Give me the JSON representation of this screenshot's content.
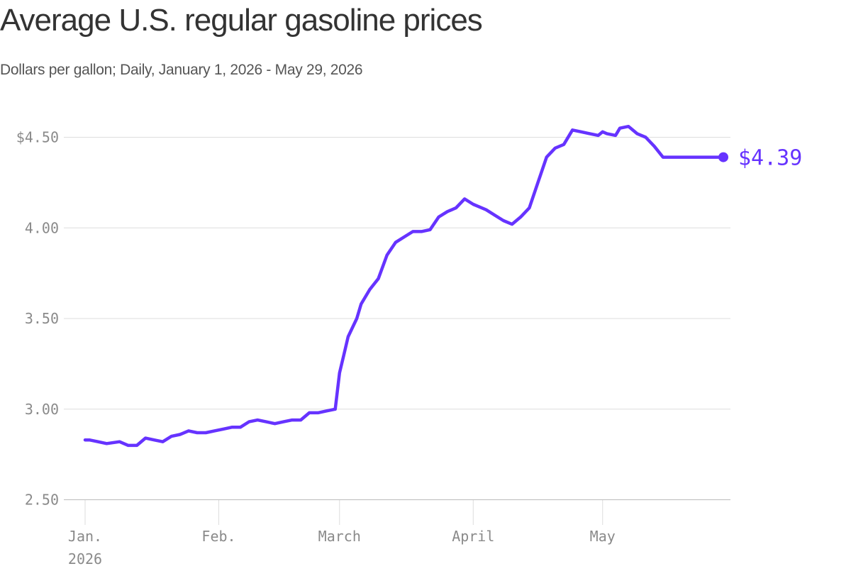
{
  "title": "Average U.S. regular gasoline prices",
  "subtitle": "Dollars per gallon; Daily, January 1, 2026 - May 29, 2026",
  "colors": {
    "line": "#6633ff",
    "grid": "#dddddd",
    "tick_text": "#8a8a8a",
    "title": "#333333"
  },
  "chart_data": {
    "type": "line",
    "title": "Average U.S. regular gasoline prices",
    "subtitle": "Dollars per gallon; Daily, January 1, 2026 - May 29, 2026",
    "xlabel": "",
    "ylabel": "",
    "ylim": [
      2.5,
      4.55
    ],
    "grid": true,
    "y_ticks": [
      {
        "value": 4.5,
        "label": "$4.50"
      },
      {
        "value": 4.0,
        "label": "4.00"
      },
      {
        "value": 3.5,
        "label": "3.50"
      },
      {
        "value": 3.0,
        "label": "3.00"
      },
      {
        "value": 2.5,
        "label": "2.50"
      }
    ],
    "x_ticks": [
      {
        "date": "2026-01-01",
        "label": "Jan.",
        "sublabel": "2026"
      },
      {
        "date": "2026-02-01",
        "label": "Feb.",
        "sublabel": ""
      },
      {
        "date": "2026-03-01",
        "label": "March",
        "sublabel": ""
      },
      {
        "date": "2026-04-01",
        "label": "April",
        "sublabel": ""
      },
      {
        "date": "2026-05-01",
        "label": "May",
        "sublabel": ""
      }
    ],
    "end_label": "$4.39",
    "series": [
      {
        "x": [
          "2026-01-01",
          "2026-01-02",
          "2026-01-04",
          "2026-01-06",
          "2026-01-09",
          "2026-01-11",
          "2026-01-13",
          "2026-01-15",
          "2026-01-17",
          "2026-01-19",
          "2026-01-21",
          "2026-01-23",
          "2026-01-25",
          "2026-01-27",
          "2026-01-29",
          "2026-01-31",
          "2026-02-02",
          "2026-02-04",
          "2026-02-06",
          "2026-02-08",
          "2026-02-10",
          "2026-02-12",
          "2026-02-14",
          "2026-02-16",
          "2026-02-18",
          "2026-02-20",
          "2026-02-22",
          "2026-02-24",
          "2026-02-26",
          "2026-02-28",
          "2026-03-01",
          "2026-03-02",
          "2026-03-03",
          "2026-03-05",
          "2026-03-06",
          "2026-03-08",
          "2026-03-10",
          "2026-03-12",
          "2026-03-14",
          "2026-03-16",
          "2026-03-18",
          "2026-03-20",
          "2026-03-22",
          "2026-03-24",
          "2026-03-26",
          "2026-03-28",
          "2026-03-30",
          "2026-04-01",
          "2026-04-02",
          "2026-04-04",
          "2026-04-06",
          "2026-04-08",
          "2026-04-10",
          "2026-04-12",
          "2026-04-14",
          "2026-04-16",
          "2026-04-18",
          "2026-04-20",
          "2026-04-22",
          "2026-04-24",
          "2026-04-26",
          "2026-04-28",
          "2026-04-30",
          "2026-05-01",
          "2026-05-02",
          "2026-05-04",
          "2026-05-05",
          "2026-05-07",
          "2026-05-09",
          "2026-05-11",
          "2026-05-13",
          "2026-05-15",
          "2026-05-17",
          "2026-05-19",
          "2026-05-21",
          "2026-05-23",
          "2026-05-25",
          "2026-05-27",
          "2026-05-29"
        ],
        "y": [
          2.83,
          2.83,
          2.82,
          2.81,
          2.82,
          2.8,
          2.8,
          2.84,
          2.83,
          2.82,
          2.85,
          2.86,
          2.88,
          2.87,
          2.87,
          2.88,
          2.89,
          2.9,
          2.9,
          2.93,
          2.94,
          2.93,
          2.92,
          2.93,
          2.94,
          2.94,
          2.98,
          2.98,
          2.99,
          3.0,
          3.2,
          3.3,
          3.4,
          3.5,
          3.58,
          3.66,
          3.72,
          3.85,
          3.92,
          3.95,
          3.98,
          3.98,
          3.99,
          4.06,
          4.09,
          4.11,
          4.16,
          4.13,
          4.12,
          4.1,
          4.07,
          4.04,
          4.02,
          4.06,
          4.11,
          4.25,
          4.39,
          4.44,
          4.46,
          4.54,
          4.53,
          4.52,
          4.51,
          4.53,
          4.52,
          4.51,
          4.55,
          4.56,
          4.52,
          4.5,
          4.45,
          4.39,
          4.39,
          4.39,
          4.39,
          4.39,
          4.39,
          4.39,
          4.39
        ]
      }
    ]
  }
}
